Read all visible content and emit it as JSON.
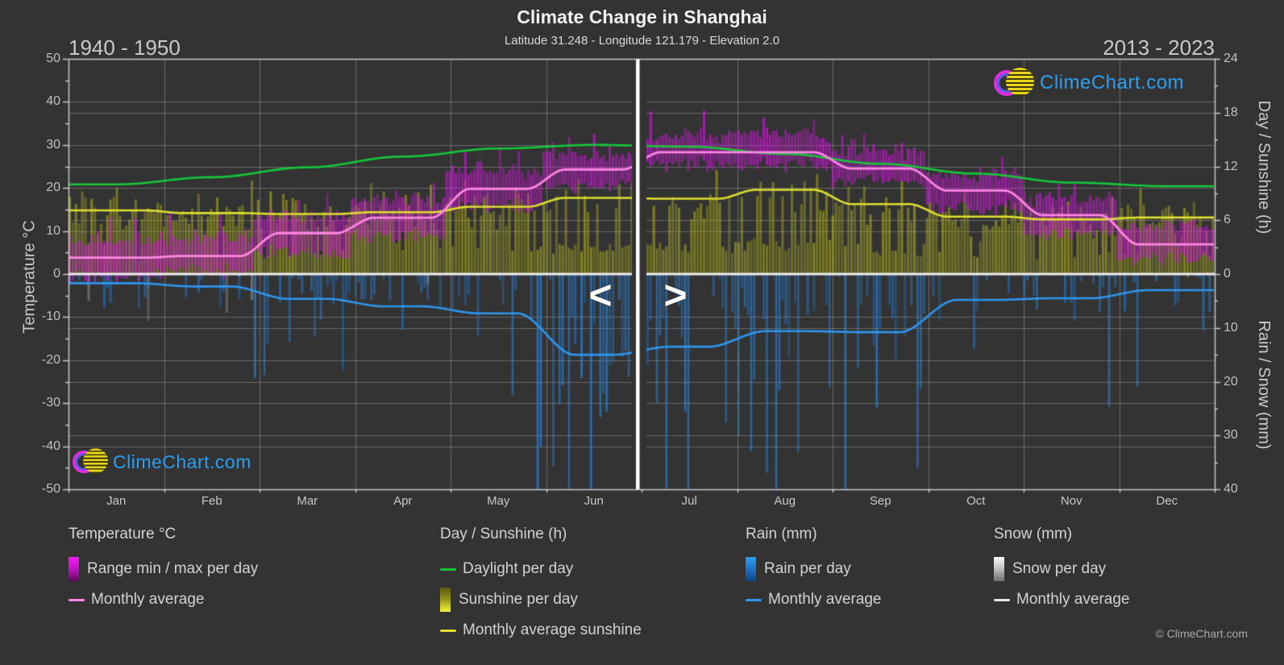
{
  "header": {
    "title": "Climate Change in Shanghai",
    "subtitle": "Latitude 31.248 - Longitude 121.179 - Elevation 2.0",
    "era_left": "1940 - 1950",
    "era_right": "2013 - 2023"
  },
  "branding": {
    "logo_text": "ClimeChart.com",
    "copyright": "© ClimeChart.com"
  },
  "slider": {
    "prev_label": "<",
    "next_label": ">",
    "split": "between Jun and Jul"
  },
  "axes": {
    "left": {
      "title": "Temperature °C",
      "ticks": [
        50,
        40,
        30,
        20,
        10,
        0,
        -10,
        -20,
        -30,
        -40,
        -50
      ],
      "range": [
        -50,
        50
      ]
    },
    "right_top": {
      "title": "Day / Sunshine (h)",
      "ticks": [
        24,
        18,
        12,
        6,
        0
      ],
      "range": [
        0,
        24
      ]
    },
    "right_bottom": {
      "title": "Rain / Snow (mm)",
      "ticks": [
        10,
        20,
        30,
        40
      ],
      "range": [
        0,
        40
      ]
    },
    "months": [
      "Jan",
      "Feb",
      "Mar",
      "Apr",
      "May",
      "Jun",
      "Jul",
      "Aug",
      "Sep",
      "Oct",
      "Nov",
      "Dec"
    ]
  },
  "legend": {
    "groups": [
      {
        "title": "Temperature °C",
        "items": [
          {
            "label": "Range min / max per day"
          },
          {
            "label": "Monthly average"
          }
        ]
      },
      {
        "title": "Day / Sunshine (h)",
        "items": [
          {
            "label": "Daylight per day"
          },
          {
            "label": "Sunshine per day"
          },
          {
            "label": "Monthly average sunshine"
          }
        ]
      },
      {
        "title": "Rain (mm)",
        "items": [
          {
            "label": "Rain per day"
          },
          {
            "label": "Monthly average"
          }
        ]
      },
      {
        "title": "Snow (mm)",
        "items": [
          {
            "label": "Snow per day"
          },
          {
            "label": "Monthly average"
          }
        ]
      }
    ]
  },
  "chart_data": {
    "type": "composite-climate",
    "note": "Left of white slider (Jan-Jun) shows era 1940-1950, right of slider (Jul-Dec) shows era 2013-2023",
    "months": [
      "Jan",
      "Feb",
      "Mar",
      "Apr",
      "May",
      "Jun",
      "Jul",
      "Aug",
      "Sep",
      "Oct",
      "Nov",
      "Dec"
    ],
    "series": [
      {
        "name": "Daylight per day",
        "unit": "h",
        "color": "#16c838",
        "style": "smooth",
        "values": [
          10.0,
          10.8,
          11.9,
          13.1,
          14.0,
          14.4,
          14.2,
          13.4,
          12.3,
          11.2,
          10.2,
          9.8
        ]
      },
      {
        "name": "Monthly average sunshine",
        "unit": "h",
        "color": "#dede30",
        "style": "step",
        "values": [
          7.1,
          6.8,
          6.7,
          6.9,
          7.5,
          8.5,
          8.4,
          9.4,
          7.8,
          6.4,
          6.1,
          6.3
        ]
      },
      {
        "name": "Monthly average temperature",
        "unit": "°C",
        "color": "#ff86e4",
        "style": "step",
        "values": [
          3.8,
          4.2,
          9.5,
          13.1,
          19.8,
          24.3,
          28.3,
          28.3,
          24.5,
          19.4,
          13.7,
          6.9
        ]
      },
      {
        "name": "Monthly average rain",
        "unit": "mm/day",
        "color": "#2e96ee",
        "style": "step",
        "values": [
          1.7,
          2.3,
          4.6,
          6.0,
          7.3,
          15.0,
          13.5,
          10.6,
          10.8,
          4.8,
          4.5,
          3.0
        ]
      },
      {
        "name": "Monthly average snow",
        "unit": "mm/day",
        "color": "#e8e8e8",
        "style": "step",
        "values": [
          0,
          0,
          0,
          0,
          0,
          0,
          0,
          0,
          0,
          0,
          0,
          0
        ]
      }
    ],
    "daily_envelopes": {
      "temp_min_c": [
        -0.5,
        0.5,
        5.0,
        9.0,
        15.5,
        20.5,
        25.5,
        25.5,
        21.5,
        15.5,
        9.5,
        3.5
      ],
      "temp_max_c": [
        8.0,
        8.5,
        13.5,
        17.5,
        24.0,
        28.0,
        32.5,
        32.5,
        28.5,
        23.0,
        17.5,
        11.0
      ],
      "sunshine_mean_h": [
        7.1,
        6.8,
        6.7,
        6.9,
        7.5,
        8.5,
        8.4,
        9.4,
        7.8,
        6.4,
        6.1,
        6.3
      ],
      "rain_wet_prob": [
        0.25,
        0.3,
        0.42,
        0.48,
        0.55,
        0.72,
        0.7,
        0.66,
        0.62,
        0.45,
        0.38,
        0.32
      ],
      "rain_scale_mm": [
        3.0,
        4.0,
        6.0,
        7.5,
        9.0,
        18.0,
        17.0,
        14.0,
        13.0,
        6.0,
        6.0,
        4.0
      ],
      "snow_wet_prob": [
        0.1,
        0.1,
        0.06,
        0.015,
        0,
        0,
        0,
        0,
        0,
        0,
        0,
        0.05
      ],
      "snow_scale_mm": [
        4.0,
        5.0,
        3.0,
        2.0,
        0,
        0,
        0,
        0,
        0,
        0,
        0,
        3.0
      ]
    },
    "bar_colors": {
      "temp_range": "#cd19d7",
      "sunshine": "#a5a523",
      "rain": "#237dd7",
      "snow": "#d2d2d2"
    },
    "layout_hints": {
      "grid": true,
      "legend_position": "bottom",
      "zero_line": true
    }
  }
}
